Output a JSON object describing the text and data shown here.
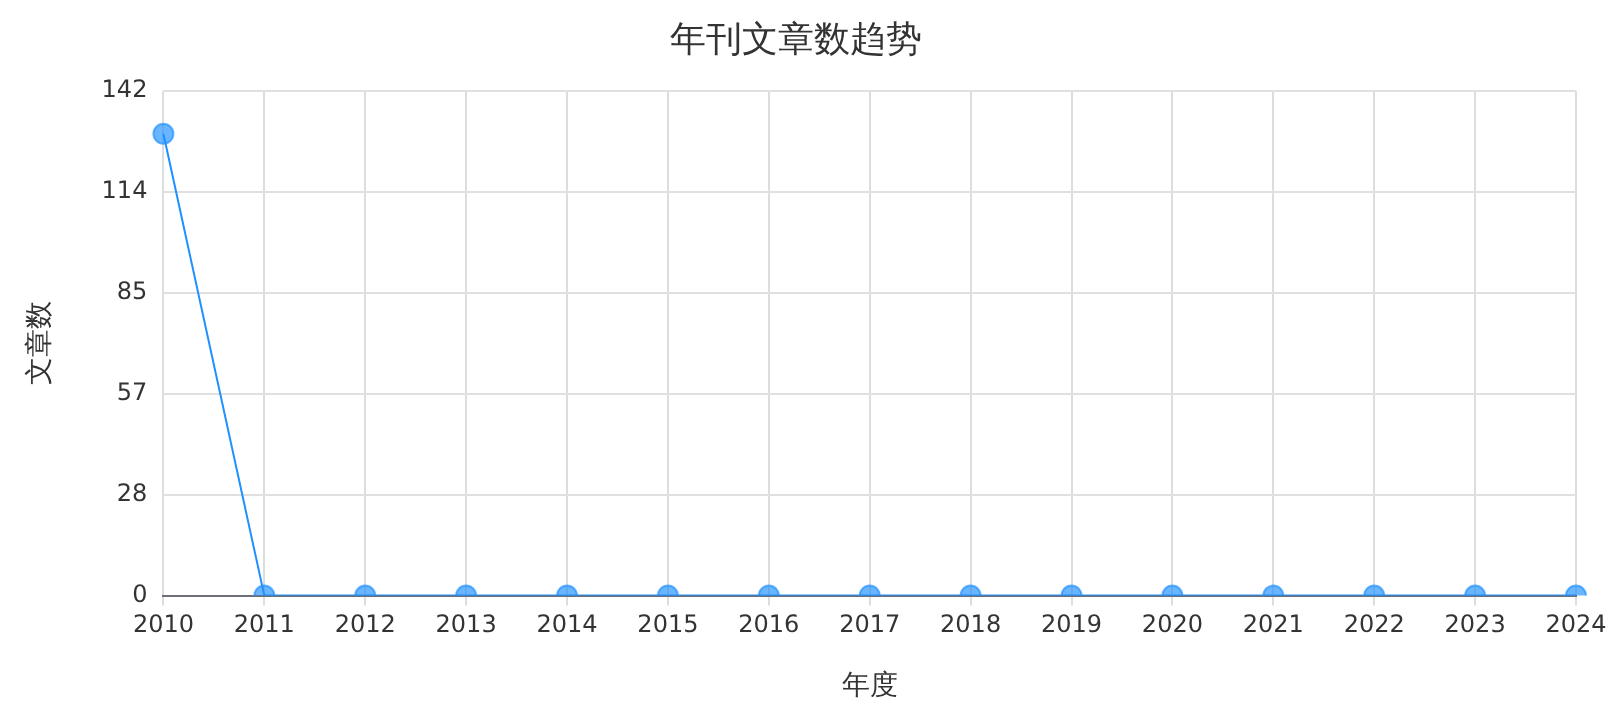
{
  "chart_data": {
    "type": "line",
    "title": "年刊文章数趋势",
    "xlabel": "年度",
    "ylabel": "文章数",
    "categories": [
      "2010",
      "2011",
      "2012",
      "2013",
      "2014",
      "2015",
      "2016",
      "2017",
      "2018",
      "2019",
      "2020",
      "2021",
      "2022",
      "2023",
      "2024"
    ],
    "series": [
      {
        "color": "#1e90ff",
        "values": [
          130,
          0,
          0,
          0,
          0,
          0,
          0,
          0,
          0,
          0,
          0,
          0,
          0,
          0,
          0
        ]
      }
    ],
    "ylim": [
      0,
      142
    ],
    "yticks": [
      0,
      {
        "value": 28.4,
        "label": "28"
      },
      {
        "value": 56.8,
        "label": "57"
      },
      {
        "value": 85.2,
        "label": "85"
      },
      {
        "value": 113.6,
        "label": "114"
      },
      142
    ],
    "grid": true,
    "marker": "circle"
  }
}
